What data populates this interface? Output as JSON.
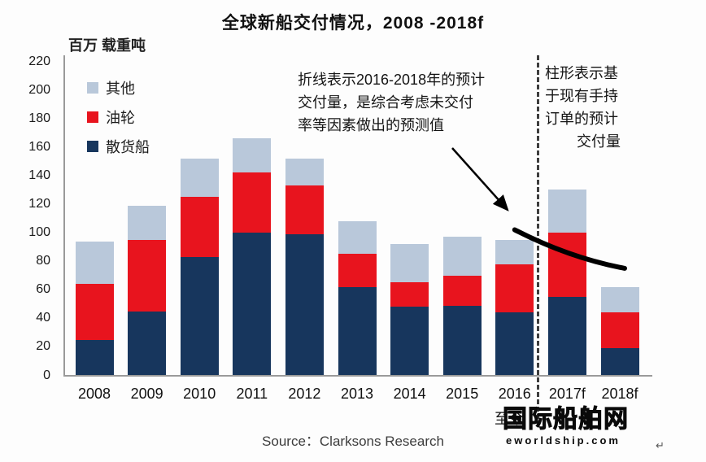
{
  "title": "全球新船交付情况，2008 -2018f",
  "axis_unit_label": "百万 载重吨",
  "legend": [
    {
      "label": "其他",
      "color": "#b9c8da"
    },
    {
      "label": "油轮",
      "color": "#e8141e"
    },
    {
      "label": "散货船",
      "color": "#17365d"
    }
  ],
  "annotations": {
    "forecast_line_note_lines": [
      "折线表示2016-2018年的预计",
      "交付量，是综合考虑未交付",
      "率等因素做出的预测值"
    ],
    "forecast_bar_note_lines": [
      "柱形表示基",
      "于现有手持",
      "订单的预计",
      "交付量"
    ]
  },
  "x_sub_label": "至今",
  "source": "Source：Clarksons Research",
  "watermark": {
    "name": "国际船舶网",
    "domain": "eworldship.com",
    "return_mark": "↵"
  },
  "colors": {
    "bulk_carrier": "#17365d",
    "tanker": "#e8141e",
    "other": "#b9c8da",
    "trend_line": "#000000",
    "divider": "#3d3d3d",
    "axis": "#9a9a9a"
  },
  "chart_data": {
    "type": "bar",
    "stacked": true,
    "title": "全球新船交付情况，2008 -2018f",
    "ylabel": "百万 载重吨",
    "ylim": [
      0,
      220
    ],
    "ytick_step": 20,
    "grid": false,
    "legend_position": "top-left",
    "categories": [
      "2008",
      "2009",
      "2010",
      "2011",
      "2012",
      "2013",
      "2014",
      "2015",
      "2016",
      "2017f",
      "2018f"
    ],
    "series": [
      {
        "name": "散货船",
        "color": "#17365d",
        "values": [
          25,
          45,
          83,
          100,
          99,
          62,
          48,
          49,
          44,
          55,
          19
        ]
      },
      {
        "name": "油轮",
        "color": "#e8141e",
        "values": [
          39,
          50,
          42,
          42,
          34,
          23,
          17,
          21,
          34,
          45,
          25
        ]
      },
      {
        "name": "其他",
        "color": "#b9c8da",
        "values": [
          30,
          24,
          27,
          24,
          19,
          23,
          27,
          27,
          17,
          30,
          18
        ]
      }
    ],
    "totals": [
      94,
      119,
      152,
      166,
      152,
      108,
      92,
      97,
      95,
      130,
      62
    ],
    "trend_line": {
      "description": "2016-2018 forecast deliveries",
      "from_category": "2016",
      "to_category": "2018f",
      "from_value": 102,
      "to_value": 75
    },
    "divider_between": [
      "2016",
      "2017f"
    ]
  }
}
